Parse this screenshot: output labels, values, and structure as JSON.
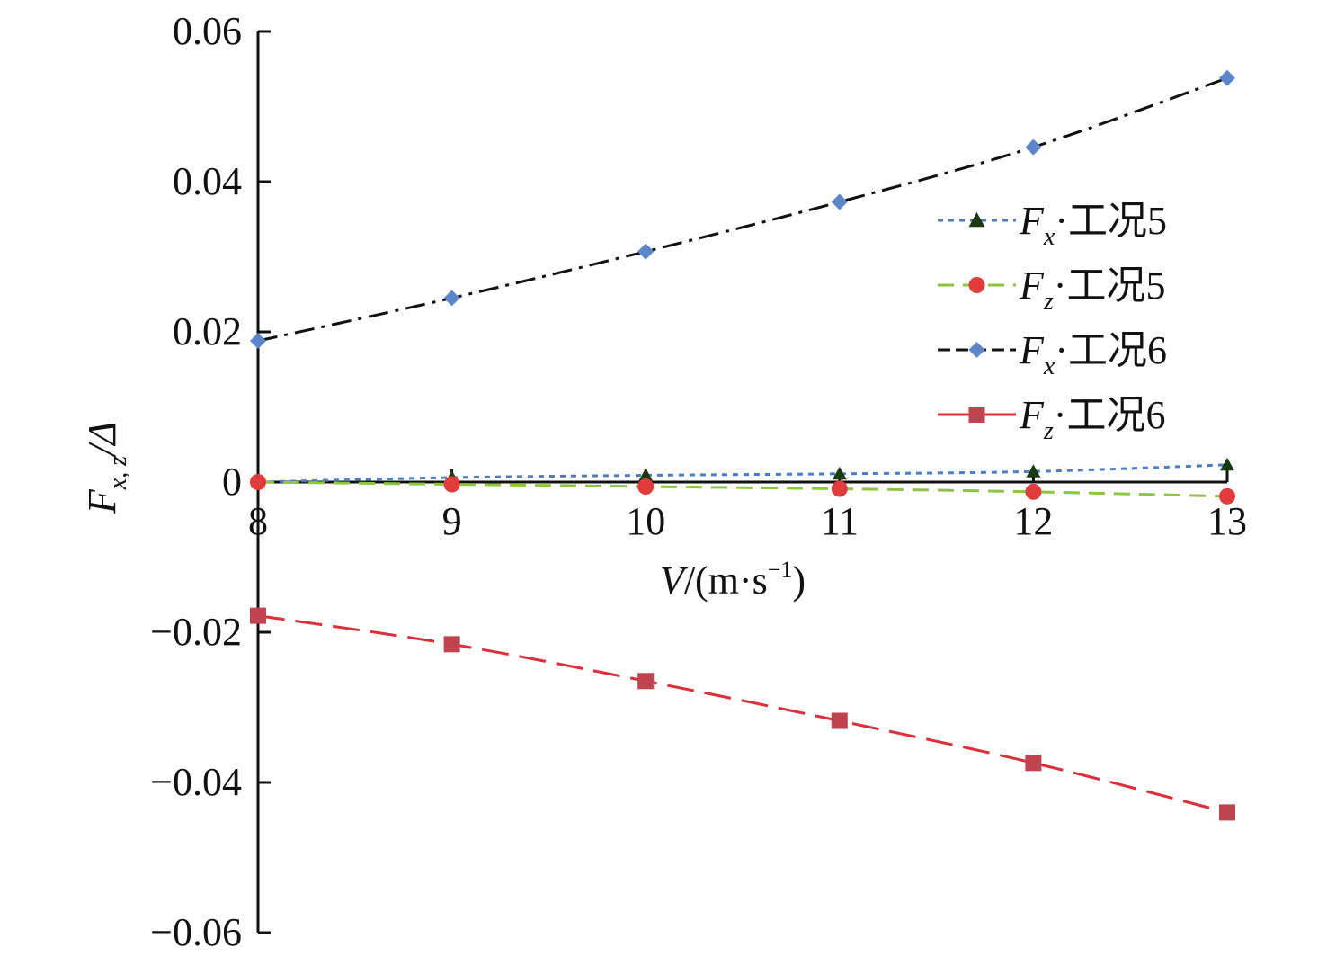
{
  "chart_data": {
    "type": "line",
    "title": "",
    "xlabel": {
      "italic": "V",
      "rest": "/(m·s",
      "sup": "−1",
      "close": ")"
    },
    "ylabel": {
      "main": "F",
      "sub": "x, z",
      "rest": "/Δ"
    },
    "xlim": [
      8,
      13
    ],
    "ylim": [
      -0.06,
      0.06
    ],
    "x_ticks": [
      "8",
      "9",
      "10",
      "11",
      "12",
      "13"
    ],
    "y_ticks": [
      {
        "value": 0.06,
        "label": "0.06"
      },
      {
        "value": 0.04,
        "label": "0.04"
      },
      {
        "value": 0.02,
        "label": "0.02"
      },
      {
        "value": 0,
        "label": "0"
      },
      {
        "value": -0.02,
        "label": "−0.02"
      },
      {
        "value": -0.04,
        "label": "−0.04"
      },
      {
        "value": -0.06,
        "label": "−0.06"
      }
    ],
    "x": [
      8,
      9,
      10,
      11,
      12,
      13
    ],
    "series": [
      {
        "name": {
          "main": "F",
          "sub": "x",
          "rest": "·工况5"
        },
        "line_color": "#4a7bc8",
        "marker_color": "#1a3a10",
        "marker": "triangle",
        "dash": "6,6",
        "values": [
          0.0,
          0.0006,
          0.0009,
          0.0011,
          0.0014,
          0.0023
        ]
      },
      {
        "name": {
          "main": "F",
          "sub": "z",
          "rest": "·工况5"
        },
        "line_color": "#8cc63f",
        "marker_color": "#e03c3c",
        "marker": "circle",
        "dash": "18,10",
        "values": [
          0.0,
          -0.0003,
          -0.0006,
          -0.0009,
          -0.0013,
          -0.0019
        ]
      },
      {
        "name": {
          "main": "F",
          "sub": "x",
          "rest": "·工况6"
        },
        "line_color": "#111111",
        "marker_color": "#5b86c9",
        "marker": "diamond",
        "dash": "22,8,4,8",
        "values": [
          0.0188,
          0.0245,
          0.0307,
          0.0373,
          0.0446,
          0.0538
        ]
      },
      {
        "name": {
          "main": "F",
          "sub": "z",
          "rest": "·工况6"
        },
        "line_color": "#d9303a",
        "marker_color": "#c0444f",
        "marker": "square",
        "dash": "30,12",
        "values": [
          -0.0178,
          -0.0216,
          -0.0265,
          -0.0318,
          -0.0374,
          -0.044
        ]
      }
    ],
    "legend_position": "upper-right",
    "grid": false
  }
}
